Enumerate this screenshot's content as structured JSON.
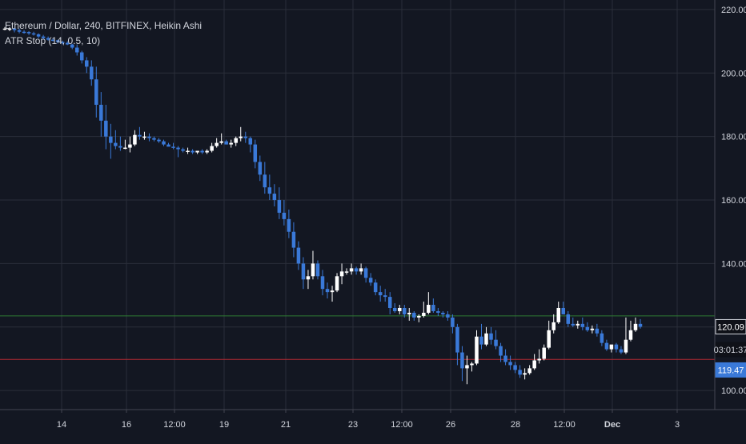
{
  "colors": {
    "background": "#131722",
    "grid": "#2a2e39",
    "text": "#d1d4dc",
    "candle_up": "#ffffff",
    "candle_down": "#3a79d8",
    "stop_high": "#2e7d32",
    "stop_low": "#b22833",
    "badge_blue": "#3a79d8",
    "badge_dark": "#0f1118"
  },
  "chart_data": {
    "type": "candlestick",
    "title": "Ethereum / Dollar, 240, BITFINEX, Heikin Ashi",
    "indicator": "ATR Stop (14, 0.5, 10)",
    "ylim": [
      94,
      223
    ],
    "y_ticks": [
      "220.00",
      "200.00",
      "180.00",
      "160.00",
      "140.00",
      "120.00",
      "100.00"
    ],
    "x_ticks": [
      "14",
      "16",
      "12:00",
      "19",
      "21",
      "23",
      "12:00",
      "26",
      "28",
      "12:00",
      "Dec",
      "3"
    ],
    "grid": true,
    "price_label": "120.09",
    "countdown_label": "03:01:37",
    "stop_label": "119.47",
    "stop_high_value": 123.5,
    "stop_low_value": 109.8,
    "candles": [
      [
        214,
        214.5,
        213.5,
        214
      ],
      [
        214,
        214.5,
        213.2,
        214
      ],
      [
        214,
        214.2,
        212.8,
        213.5
      ],
      [
        213.5,
        214,
        212.5,
        213
      ],
      [
        213,
        213.5,
        212.4,
        212.9
      ],
      [
        212.9,
        213.2,
        212,
        212.5
      ],
      [
        212.5,
        213,
        211.8,
        212.2
      ],
      [
        212.2,
        212.5,
        211,
        211.5
      ],
      [
        211.5,
        212,
        210.5,
        211
      ],
      [
        211,
        211.5,
        210.2,
        210.5
      ],
      [
        210.5,
        211,
        210,
        210.3
      ],
      [
        210.3,
        210.5,
        209.3,
        209.8
      ],
      [
        209.8,
        210.2,
        209,
        209.5
      ],
      [
        209.5,
        210,
        208.8,
        209
      ],
      [
        209,
        209.2,
        207.5,
        208
      ],
      [
        208,
        209,
        205.5,
        206.5
      ],
      [
        206.5,
        207,
        203,
        204
      ],
      [
        204,
        205,
        200,
        202
      ],
      [
        202,
        204,
        196,
        198
      ],
      [
        198,
        202,
        186,
        190
      ],
      [
        190,
        194,
        180,
        185
      ],
      [
        185,
        190,
        176,
        180
      ],
      [
        180,
        184,
        173,
        178
      ],
      [
        178,
        182,
        176,
        177
      ],
      [
        177,
        180,
        175.5,
        176.5
      ],
      [
        176.5,
        179,
        176,
        176.5
      ],
      [
        176.5,
        180,
        175,
        177.5
      ],
      [
        177.5,
        182,
        177,
        180.5
      ],
      [
        180.5,
        183,
        179,
        180
      ],
      [
        180,
        181.5,
        179,
        180
      ],
      [
        180,
        181,
        178.5,
        179.5
      ],
      [
        179.5,
        180,
        178.5,
        179
      ],
      [
        179,
        179.5,
        178,
        178.5
      ],
      [
        178.5,
        179,
        177,
        177.5
      ],
      [
        177.5,
        178,
        177,
        176.8
      ],
      [
        176.8,
        178,
        176,
        176.5
      ],
      [
        176.5,
        177,
        173.5,
        176
      ],
      [
        176,
        176.5,
        175,
        175.5
      ],
      [
        175.5,
        176.5,
        174.5,
        175.5
      ],
      [
        175.5,
        176,
        174.5,
        175
      ],
      [
        175,
        175.5,
        174.5,
        175.5
      ],
      [
        175.5,
        176,
        174.5,
        175
      ],
      [
        175,
        176,
        174.5,
        175.5
      ],
      [
        175.5,
        178,
        175,
        177
      ],
      [
        177,
        179.5,
        176.5,
        178
      ],
      [
        178,
        181,
        177.5,
        178.5
      ],
      [
        178.5,
        179,
        177.5,
        177.5
      ],
      [
        177.5,
        179,
        176.5,
        178
      ],
      [
        178,
        180,
        177,
        179.5
      ],
      [
        179.5,
        183,
        178.5,
        180
      ],
      [
        180,
        181.5,
        178,
        179.5
      ],
      [
        179.5,
        180,
        175,
        177.5
      ],
      [
        177.5,
        179,
        170,
        172
      ],
      [
        172,
        174,
        166,
        168
      ],
      [
        168,
        172,
        162,
        164
      ],
      [
        164,
        168,
        160,
        162
      ],
      [
        162,
        165,
        158,
        160
      ],
      [
        160,
        164,
        154,
        156
      ],
      [
        156,
        160,
        152,
        154
      ],
      [
        154,
        157,
        148,
        150
      ],
      [
        150,
        153,
        142,
        145
      ],
      [
        145,
        147,
        138,
        140
      ],
      [
        140,
        142,
        132,
        135
      ],
      [
        135,
        138,
        132,
        136
      ],
      [
        136,
        144,
        135,
        140
      ],
      [
        140,
        141,
        135,
        136
      ],
      [
        136,
        138,
        130,
        132
      ],
      [
        132,
        134,
        129,
        131
      ],
      [
        131,
        133,
        128,
        131.5
      ],
      [
        131.5,
        137,
        131,
        136
      ],
      [
        136,
        140,
        133.5,
        137.5
      ],
      [
        137.5,
        138.5,
        136.5,
        137.5
      ],
      [
        137.5,
        140,
        136.5,
        138.5
      ],
      [
        138.5,
        139,
        136.5,
        137.5
      ],
      [
        137.5,
        140,
        136.5,
        138.5
      ],
      [
        138.5,
        139,
        134,
        135.5
      ],
      [
        135.5,
        137,
        133,
        134
      ],
      [
        134,
        135,
        130,
        131
      ],
      [
        131,
        133,
        128,
        130
      ],
      [
        130,
        132,
        128,
        129.5
      ],
      [
        129.5,
        131,
        124,
        126
      ],
      [
        126,
        127.5,
        124.5,
        125
      ],
      [
        125,
        127,
        124,
        126
      ],
      [
        126,
        127,
        123,
        124
      ],
      [
        124,
        126,
        122,
        124.5
      ],
      [
        124.5,
        125,
        122,
        123
      ],
      [
        123,
        124,
        121.5,
        123.5
      ],
      [
        123.5,
        128,
        123,
        124.5
      ],
      [
        124.5,
        131,
        124,
        127
      ],
      [
        127,
        129,
        124.5,
        125
      ],
      [
        125,
        126,
        123.5,
        124.5
      ],
      [
        124.5,
        125,
        123,
        124
      ],
      [
        124,
        125,
        122,
        123
      ],
      [
        123,
        124,
        118,
        120
      ],
      [
        120,
        121,
        108,
        112
      ],
      [
        112,
        114,
        103,
        107
      ],
      [
        107,
        111,
        102,
        108
      ],
      [
        108,
        109,
        106,
        108.5
      ],
      [
        108.5,
        119,
        108,
        117
      ],
      [
        117,
        121,
        113,
        114.5
      ],
      [
        114.5,
        120,
        114,
        118
      ],
      [
        118,
        120,
        114.5,
        116
      ],
      [
        116,
        119,
        113,
        114
      ],
      [
        114,
        115,
        109,
        111
      ],
      [
        111,
        113,
        108,
        109
      ],
      [
        109,
        111,
        106.5,
        108
      ],
      [
        108,
        109,
        105.5,
        106.5
      ],
      [
        106.5,
        108,
        104,
        105
      ],
      [
        105,
        107,
        103.5,
        105.5
      ],
      [
        105.5,
        108,
        105,
        107
      ],
      [
        107,
        111.5,
        106.5,
        109.5
      ],
      [
        109.5,
        113,
        108.5,
        110
      ],
      [
        110,
        114.5,
        109.5,
        113.5
      ],
      [
        113.5,
        122,
        113,
        119
      ],
      [
        119,
        124,
        118,
        121.5
      ],
      [
        121.5,
        128,
        121,
        126
      ],
      [
        126,
        128,
        124,
        124
      ],
      [
        124,
        125,
        120,
        121
      ],
      [
        121,
        123,
        120,
        120.5
      ],
      [
        120.5,
        122,
        119.5,
        121
      ],
      [
        121,
        123,
        119,
        120
      ],
      [
        120,
        121.5,
        118.5,
        119
      ],
      [
        119,
        120.5,
        118,
        119.5
      ],
      [
        119.5,
        121,
        117,
        118
      ],
      [
        118,
        119,
        114,
        115
      ],
      [
        115,
        116,
        112.5,
        113
      ],
      [
        113,
        114,
        112,
        114.5
      ],
      [
        114.5,
        115,
        112,
        113
      ],
      [
        113,
        114,
        111.5,
        112
      ],
      [
        112,
        123,
        111.5,
        116
      ],
      [
        116,
        122,
        115.5,
        119
      ],
      [
        119,
        123,
        118.5,
        121
      ],
      [
        121,
        122.5,
        119.5,
        120.09
      ]
    ]
  }
}
